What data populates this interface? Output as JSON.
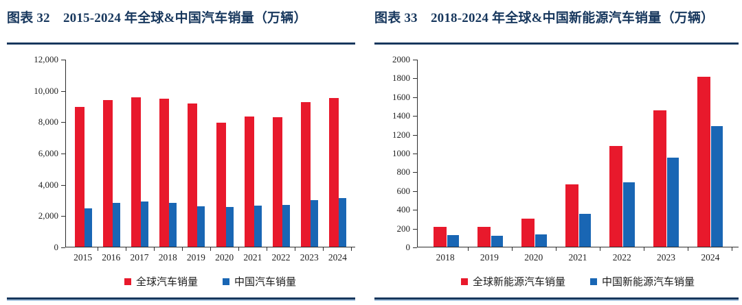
{
  "colors": {
    "title_navy": "#17375D",
    "rule_navy": "#17375D",
    "rule_light_blue": "#A8C4E0",
    "axis_black": "#2b2b2b",
    "series_red": "#E8192C",
    "series_blue": "#1966B4",
    "background": "#ffffff"
  },
  "chart_data": [
    {
      "id": "fig32",
      "type": "bar",
      "title": "图表 32　2015-2024 年全球&中国汽车销量（万辆）",
      "xlabel": "",
      "ylabel": "",
      "categories": [
        "2015",
        "2016",
        "2017",
        "2018",
        "2019",
        "2020",
        "2021",
        "2022",
        "2023",
        "2024"
      ],
      "series": [
        {
          "key": "global-auto",
          "name": "全球汽车销量",
          "color": "#E8192C",
          "values": [
            8970,
            9390,
            9600,
            9510,
            9200,
            7970,
            8350,
            8300,
            9270,
            9550
          ]
        },
        {
          "key": "china-auto",
          "name": "中国汽车销量",
          "color": "#1966B4",
          "values": [
            2460,
            2800,
            2890,
            2810,
            2580,
            2530,
            2630,
            2690,
            3010,
            3140
          ]
        }
      ],
      "ylim": [
        0,
        12000
      ],
      "ytick_step": 2000,
      "ytick_comma": true,
      "grid": false,
      "legend_position": "bottom"
    },
    {
      "id": "fig33",
      "type": "bar",
      "title": "图表 33　2018-2024 年全球&中国新能源汽车销量（万辆）",
      "xlabel": "",
      "ylabel": "",
      "categories": [
        "2018",
        "2019",
        "2020",
        "2021",
        "2022",
        "2023",
        "2024"
      ],
      "series": [
        {
          "key": "global-nev",
          "name": "全球新能源汽车销量",
          "color": "#E8192C",
          "values": [
            210,
            210,
            300,
            670,
            1080,
            1460,
            1820
          ]
        },
        {
          "key": "china-nev",
          "name": "中国新能源汽车销量",
          "color": "#1966B4",
          "values": [
            125,
            120,
            135,
            350,
            690,
            950,
            1290
          ]
        }
      ],
      "ylim": [
        0,
        2000
      ],
      "ytick_step": 200,
      "ytick_comma": false,
      "grid": false,
      "legend_position": "bottom"
    }
  ]
}
